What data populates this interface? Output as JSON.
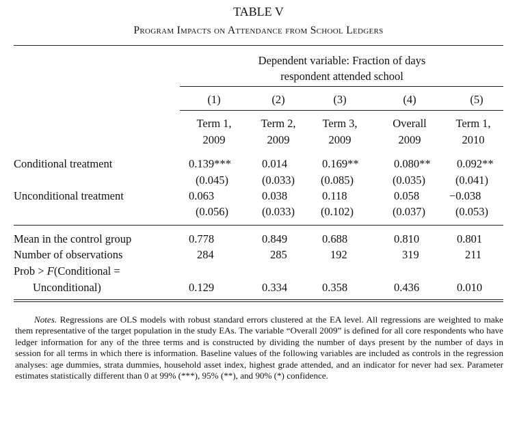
{
  "table": {
    "number": "TABLE V",
    "caption": "Program Impacts on Attendance from School Ledgers",
    "dependent_variable_line1": "Dependent variable: Fraction of days",
    "dependent_variable_line2": "respondent attended school",
    "columns": [
      {
        "num": "(1)",
        "line1": "Term 1,",
        "line2": "2009"
      },
      {
        "num": "(2)",
        "line1": "Term 2,",
        "line2": "2009"
      },
      {
        "num": "(3)",
        "line1": "Term 3,",
        "line2": "2009"
      },
      {
        "num": "(4)",
        "line1": "Overall",
        "line2": "2009"
      },
      {
        "num": "(5)",
        "line1": "Term 1,",
        "line2": "2010"
      }
    ],
    "rows": [
      {
        "label": "Conditional treatment",
        "coef": [
          "0.139***",
          "0.014",
          "0.169**",
          "0.080**",
          "0.092**"
        ],
        "se": [
          "(0.045)",
          "(0.033)",
          "(0.085)",
          "(0.035)",
          "(0.041)"
        ]
      },
      {
        "label": "Unconditional treatment",
        "coef": [
          "0.063",
          "0.038",
          "0.118",
          "0.058",
          "−0.038"
        ],
        "se": [
          "(0.056)",
          "(0.033)",
          "(0.102)",
          "(0.037)",
          "(0.053)"
        ]
      }
    ],
    "stats": {
      "mean_label": "Mean in the control group",
      "mean": [
        "0.778",
        "0.849",
        "0.688",
        "0.810",
        "0.801"
      ],
      "obs_label": "Number of observations",
      "obs": [
        "284",
        "285",
        "192",
        "319",
        "211"
      ],
      "prob_label_line1": "Prob > F(Conditional =",
      "prob_label_line2": "Unconditional)",
      "prob": [
        "0.129",
        "0.334",
        "0.358",
        "0.436",
        "0.010"
      ]
    }
  },
  "notes": {
    "label": "Notes.",
    "text": "Regressions are OLS models with robust standard errors clustered at the EA level. All regressions are weighted to make them representative of the target population in the study EAs. The variable “Overall 2009” is defined for all core respondents who have ledger information for any of the three terms and is constructed by dividing the number of days present by the number of days in session for all terms in which there is information. Baseline values of the following variables are included as controls in the regression analyses: age dummies, strata dummies, household asset index, highest grade attended, and an indicator for never had sex. Parameter estimates statistically different than 0 at 99% (***), 95% (**), and 90% (*) confidence."
  }
}
